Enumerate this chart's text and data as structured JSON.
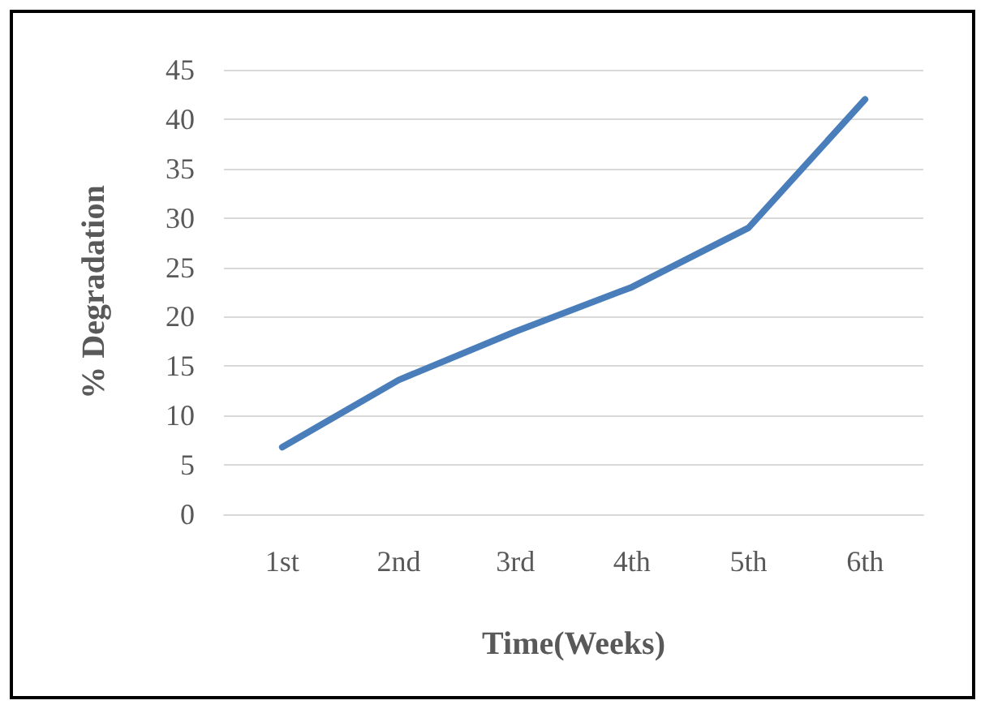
{
  "chart_data": {
    "type": "line",
    "xlabel": "Time(Weeks)",
    "ylabel": "% Degradation",
    "categories": [
      "1st",
      "2nd",
      "3rd",
      "4th",
      "5th",
      "6th"
    ],
    "series": [
      {
        "color": "#4a7ebb",
        "values": [
          6.8,
          13.6,
          18.5,
          23.0,
          29.0,
          42.0
        ]
      }
    ],
    "ylim": [
      0,
      45
    ],
    "yticks": [
      0,
      5,
      10,
      15,
      20,
      25,
      30,
      35,
      40,
      45
    ],
    "grid": "y",
    "marker": "none",
    "line_style": "solid"
  }
}
